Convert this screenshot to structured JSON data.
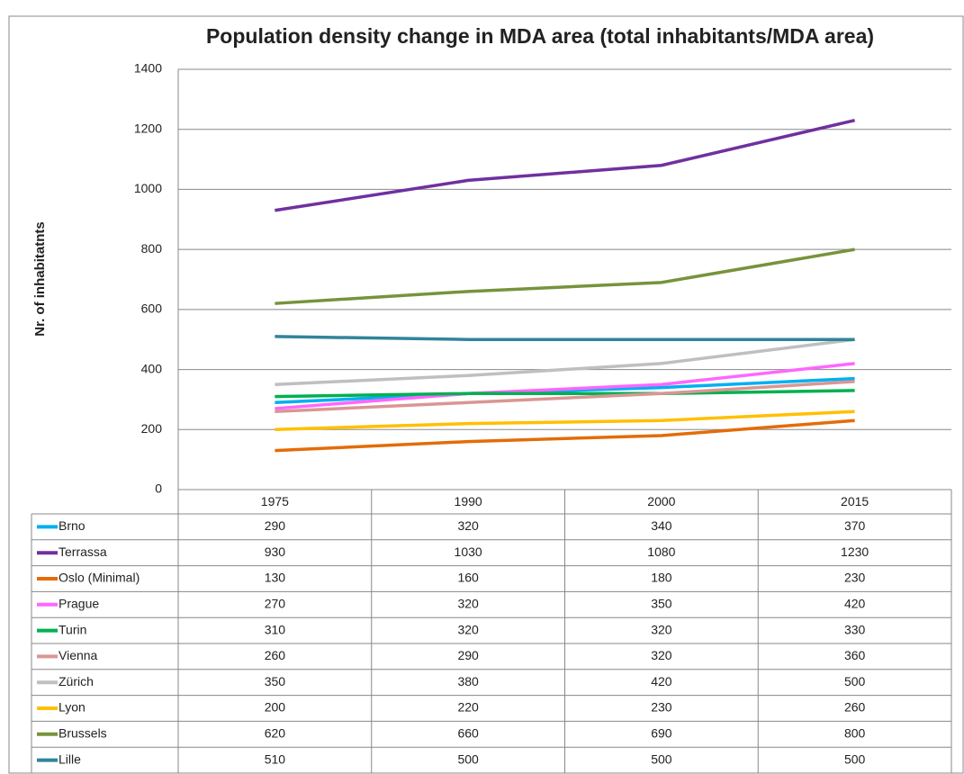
{
  "chart_data": {
    "type": "line",
    "title": "Population density change in MDA area (total inhabitants/MDA area)",
    "y_label": "Nr. of inhabitatnts",
    "categories": [
      "1975",
      "1990",
      "2000",
      "2015"
    ],
    "ylim": [
      0,
      1400
    ],
    "yticks": [
      0,
      200,
      400,
      600,
      800,
      1000,
      1200,
      1400
    ],
    "grid": true,
    "series": [
      {
        "name": "Brno",
        "color": "#00b0f0",
        "values": [
          290,
          320,
          340,
          370
        ]
      },
      {
        "name": "Terrassa",
        "color": "#7030a0",
        "values": [
          930,
          1030,
          1080,
          1230
        ]
      },
      {
        "name": "Oslo (Minimal)",
        "color": "#e36c09",
        "values": [
          130,
          160,
          180,
          230
        ]
      },
      {
        "name": "Prague",
        "color": "#ff66ff",
        "values": [
          270,
          320,
          350,
          420
        ]
      },
      {
        "name": "Turin",
        "color": "#00b050",
        "values": [
          310,
          320,
          320,
          330
        ]
      },
      {
        "name": "Vienna",
        "color": "#d99694",
        "values": [
          260,
          290,
          320,
          360
        ]
      },
      {
        "name": "Zürich",
        "color": "#bfbfbf",
        "values": [
          350,
          380,
          420,
          500
        ]
      },
      {
        "name": "Lyon",
        "color": "#ffc000",
        "values": [
          200,
          220,
          230,
          260
        ]
      },
      {
        "name": "Brussels",
        "color": "#77933c",
        "values": [
          620,
          660,
          690,
          800
        ]
      },
      {
        "name": "Lille",
        "color": "#31849b",
        "values": [
          510,
          500,
          500,
          500
        ]
      }
    ]
  }
}
